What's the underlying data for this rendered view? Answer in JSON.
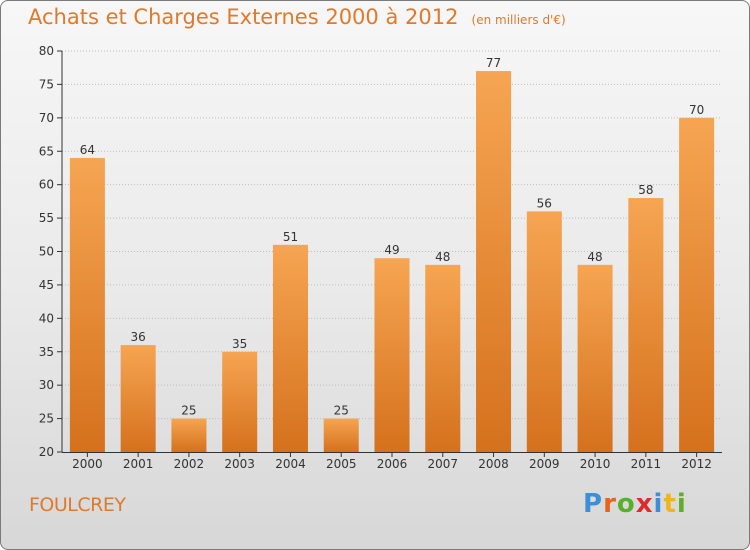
{
  "title": "Achats et Charges Externes 2000 à 2012",
  "subtitle": "(en milliers d'€)",
  "place": "FOULCREY",
  "logo": {
    "letters": [
      "P",
      "r",
      "o",
      "x",
      "i",
      "t",
      "i"
    ],
    "colors": [
      "#3a8fd6",
      "#e8631f",
      "#5cae2e",
      "#e0292b",
      "#3a8fd6",
      "#f1b51c",
      "#5cae2e"
    ]
  },
  "colors": {
    "bar_top": "#f6a552",
    "bar_bottom": "#d5711d",
    "title": "#e07a2a",
    "axis": "#333333",
    "grid": "#bdbdbd"
  },
  "chart_data": {
    "type": "bar",
    "categories": [
      "2000",
      "2001",
      "2002",
      "2003",
      "2004",
      "2005",
      "2006",
      "2007",
      "2008",
      "2009",
      "2010",
      "2011",
      "2012"
    ],
    "values": [
      64,
      36,
      25,
      35,
      51,
      25,
      49,
      48,
      77,
      56,
      48,
      58,
      70
    ],
    "title": "Achats et Charges Externes 2000 à 2012",
    "xlabel": "",
    "ylabel": "",
    "ylim": [
      20,
      80
    ],
    "yticks": [
      20,
      25,
      30,
      35,
      40,
      45,
      50,
      55,
      60,
      65,
      70,
      75,
      80
    ],
    "grid": true
  }
}
